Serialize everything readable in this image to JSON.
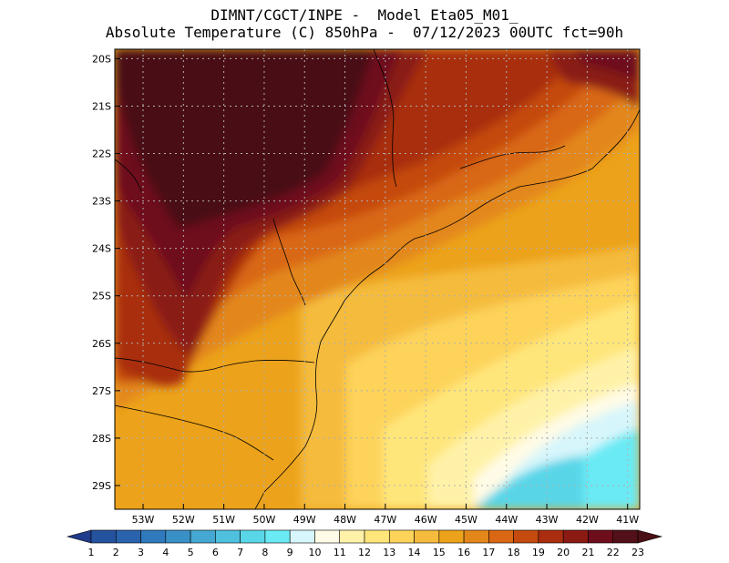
{
  "header": {
    "line1": "DIMNT/CGCT/INPE -  Model Eta05_M01_",
    "line2": "Absolute Temperature (C) 850hPa -  07/12/2023 00UTC fct=90h"
  },
  "map": {
    "lat_labels": [
      "20S",
      "21S",
      "22S",
      "23S",
      "24S",
      "25S",
      "26S",
      "27S",
      "28S",
      "29S"
    ],
    "lon_labels": [
      "53W",
      "52W",
      "51W",
      "50W",
      "49W",
      "48W",
      "47W",
      "46W",
      "45W",
      "44W",
      "43W",
      "42W",
      "41W"
    ],
    "lat_range": [
      -29.5,
      -19.8
    ],
    "lon_range": [
      -53.7,
      -40.7
    ]
  },
  "colorbar": {
    "labels": [
      "1",
      "2",
      "3",
      "4",
      "5",
      "6",
      "7",
      "8",
      "9",
      "10",
      "11",
      "12",
      "13",
      "14",
      "15",
      "16",
      "17",
      "18",
      "19",
      "20",
      "21",
      "22",
      "23"
    ],
    "colors": [
      "#1f3b8c",
      "#24529f",
      "#2a63ad",
      "#2f79bd",
      "#3990c6",
      "#45a8d2",
      "#4fc0de",
      "#59d6e8",
      "#6aeaf4",
      "#d7f6fb",
      "#fffbe6",
      "#fff2a8",
      "#ffe67a",
      "#fdd35a",
      "#f5bb3c",
      "#eca21a",
      "#e3871a",
      "#d96713",
      "#c54a0e",
      "#a92d0e",
      "#8a1a12",
      "#6e0d1c",
      "#521018",
      "#4a1015"
    ]
  }
}
